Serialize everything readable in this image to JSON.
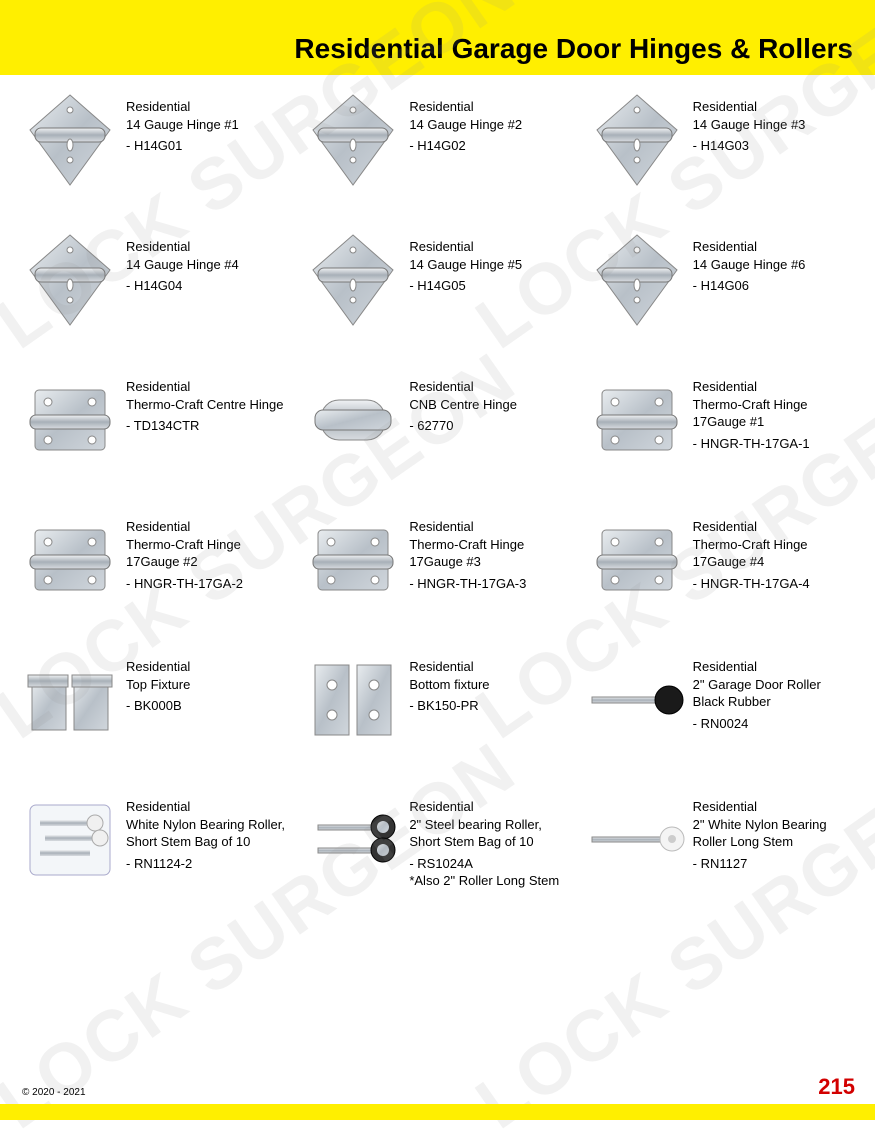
{
  "header": {
    "title": "Residential Garage Door Hinges & Rollers"
  },
  "footer": {
    "copyright": "© 2020 - 2021",
    "page": "215"
  },
  "watermark_text": "LOCK SURGEON",
  "products": [
    {
      "line1": "Residential",
      "line2": "14 Gauge Hinge #1",
      "sku": "- H14G01",
      "icon": "hinge-tri"
    },
    {
      "line1": "Residential",
      "line2": "14 Gauge Hinge #2",
      "sku": "- H14G02",
      "icon": "hinge-tri"
    },
    {
      "line1": "Residential",
      "line2": "14 Gauge Hinge #3",
      "sku": "- H14G03",
      "icon": "hinge-tri"
    },
    {
      "line1": "Residential",
      "line2": "14 Gauge Hinge #4",
      "sku": "- H14G04",
      "icon": "hinge-tri"
    },
    {
      "line1": "Residential",
      "line2": "14 Gauge Hinge #5",
      "sku": "- H14G05",
      "icon": "hinge-tri"
    },
    {
      "line1": "Residential",
      "line2": "14 Gauge Hinge #6",
      "sku": "- H14G06",
      "icon": "hinge-tri"
    },
    {
      "line1": "Residential",
      "line2": "Thermo-Craft Centre Hinge",
      "sku": "- TD134CTR",
      "icon": "hinge-rect"
    },
    {
      "line1": "Residential",
      "line2": "CNB Centre Hinge",
      "sku": "- 62770",
      "icon": "hinge-cyl"
    },
    {
      "line1": "Residential",
      "line2": "Thermo-Craft Hinge 17Gauge #1",
      "sku": "- HNGR-TH-17GA-1",
      "icon": "hinge-rect"
    },
    {
      "line1": "Residential",
      "line2": "Thermo-Craft Hinge 17Gauge #2",
      "sku": "- HNGR-TH-17GA-2",
      "icon": "hinge-rect"
    },
    {
      "line1": "Residential",
      "line2": "Thermo-Craft Hinge 17Gauge #3",
      "sku": "- HNGR-TH-17GA-3",
      "icon": "hinge-rect"
    },
    {
      "line1": "Residential",
      "line2": "Thermo-Craft Hinge 17Gauge #4",
      "sku": "- HNGR-TH-17GA-4",
      "icon": "hinge-rect"
    },
    {
      "line1": "Residential",
      "line2": "Top Fixture",
      "sku": "- BK000B",
      "icon": "fixture-top"
    },
    {
      "line1": "Residential",
      "line2": "Bottom fixture",
      "sku": "- BK150-PR",
      "icon": "fixture-bottom"
    },
    {
      "line1": "Residential",
      "line2": "2\" Garage Door Roller Black Rubber",
      "sku": "- RN0024",
      "icon": "roller-black"
    },
    {
      "line1": "Residential",
      "line2": "White Nylon Bearing Roller, Short Stem Bag of 10",
      "sku": "- RN1124-2",
      "icon": "roller-bag"
    },
    {
      "line1": "Residential",
      "line2": "2\" Steel bearing Roller, Short Stem Bag of 10",
      "sku": "- RS1024A\n*Also 2\" Roller Long Stem",
      "icon": "roller-steel"
    },
    {
      "line1": "Residential",
      "line2": "2\" White Nylon Bearing Roller Long Stem",
      "sku": "- RN1127",
      "icon": "roller-white"
    }
  ]
}
